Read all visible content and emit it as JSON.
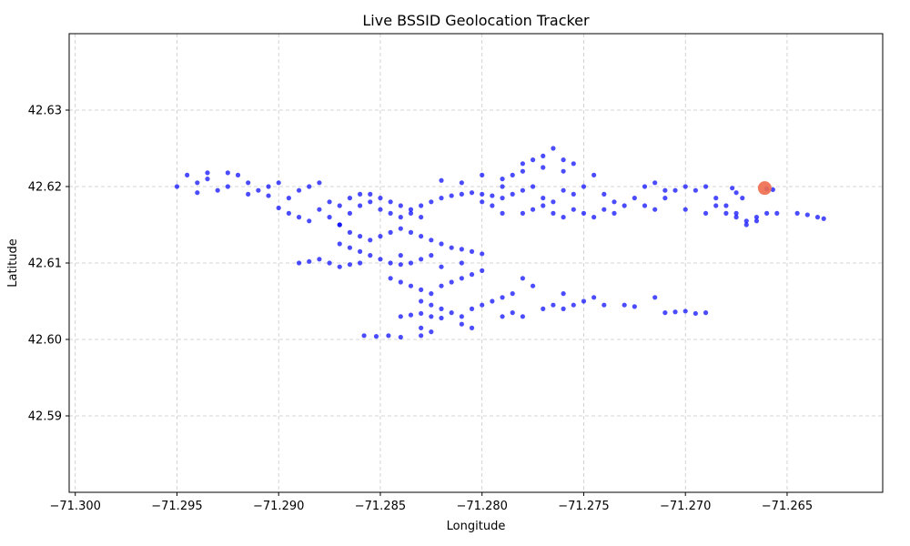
{
  "chart_data": {
    "type": "scatter",
    "title": "Live BSSID Geolocation Tracker",
    "xlabel": "Longitude",
    "ylabel": "Latitude",
    "xlim": [
      -71.3003,
      -71.2603
    ],
    "ylim": [
      42.58,
      42.64
    ],
    "x_ticks": [
      -71.3,
      -71.295,
      -71.29,
      -71.285,
      -71.28,
      -71.275,
      -71.27,
      -71.265
    ],
    "x_tick_labels": [
      "−71.300",
      "−71.295",
      "−71.290",
      "−71.285",
      "−71.280",
      "−71.275",
      "−71.270",
      "−71.265"
    ],
    "y_ticks": [
      42.59,
      42.6,
      42.61,
      42.62,
      42.63
    ],
    "y_tick_labels": [
      "42.59",
      "42.60",
      "42.61",
      "42.62",
      "42.63"
    ],
    "grid": true,
    "grid_style": "dashed",
    "series": [
      {
        "color": "#0000ff",
        "points": [
          [
            -71.295,
            42.62
          ],
          [
            -71.2945,
            42.6215
          ],
          [
            -71.294,
            42.6205
          ],
          [
            -71.2935,
            42.621
          ],
          [
            -71.293,
            42.6195
          ],
          [
            -71.2925,
            42.62
          ],
          [
            -71.292,
            42.6215
          ],
          [
            -71.2915,
            42.6205
          ],
          [
            -71.291,
            42.6195
          ],
          [
            -71.2905,
            42.62
          ],
          [
            -71.29,
            42.6205
          ],
          [
            -71.2895,
            42.6185
          ],
          [
            -71.289,
            42.6195
          ],
          [
            -71.2885,
            42.62
          ],
          [
            -71.288,
            42.6205
          ],
          [
            -71.2925,
            42.6218
          ],
          [
            -71.2935,
            42.6218
          ],
          [
            -71.294,
            42.6192
          ],
          [
            -71.2915,
            42.619
          ],
          [
            -71.2905,
            42.6188
          ],
          [
            -71.29,
            42.6172
          ],
          [
            -71.2895,
            42.6165
          ],
          [
            -71.289,
            42.616
          ],
          [
            -71.2885,
            42.6155
          ],
          [
            -71.288,
            42.617
          ],
          [
            -71.2875,
            42.616
          ],
          [
            -71.287,
            42.615
          ],
          [
            -71.2865,
            42.6165
          ],
          [
            -71.286,
            42.6175
          ],
          [
            -71.2855,
            42.618
          ],
          [
            -71.2875,
            42.618
          ],
          [
            -71.287,
            42.6175
          ],
          [
            -71.2865,
            42.6185
          ],
          [
            -71.286,
            42.619
          ],
          [
            -71.2855,
            42.619
          ],
          [
            -71.285,
            42.6185
          ],
          [
            -71.2845,
            42.618
          ],
          [
            -71.284,
            42.6175
          ],
          [
            -71.2835,
            42.617
          ],
          [
            -71.283,
            42.6175
          ],
          [
            -71.2825,
            42.618
          ],
          [
            -71.282,
            42.6185
          ],
          [
            -71.2815,
            42.6188
          ],
          [
            -71.281,
            42.619
          ],
          [
            -71.2805,
            42.6192
          ],
          [
            -71.28,
            42.619
          ],
          [
            -71.2795,
            42.6188
          ],
          [
            -71.279,
            42.6185
          ],
          [
            -71.2785,
            42.619
          ],
          [
            -71.278,
            42.6195
          ],
          [
            -71.285,
            42.617
          ],
          [
            -71.2845,
            42.6165
          ],
          [
            -71.284,
            42.616
          ],
          [
            -71.2835,
            42.6165
          ],
          [
            -71.283,
            42.616
          ],
          [
            -71.287,
            42.615
          ],
          [
            -71.2865,
            42.614
          ],
          [
            -71.286,
            42.6135
          ],
          [
            -71.2855,
            42.613
          ],
          [
            -71.285,
            42.6135
          ],
          [
            -71.2845,
            42.614
          ],
          [
            -71.284,
            42.6145
          ],
          [
            -71.2835,
            42.614
          ],
          [
            -71.283,
            42.6135
          ],
          [
            -71.2825,
            42.613
          ],
          [
            -71.282,
            42.6125
          ],
          [
            -71.2815,
            42.612
          ],
          [
            -71.281,
            42.6118
          ],
          [
            -71.2805,
            42.6115
          ],
          [
            -71.28,
            42.6112
          ],
          [
            -71.287,
            42.6125
          ],
          [
            -71.2865,
            42.612
          ],
          [
            -71.286,
            42.6115
          ],
          [
            -71.2855,
            42.611
          ],
          [
            -71.285,
            42.6105
          ],
          [
            -71.2845,
            42.61
          ],
          [
            -71.284,
            42.6098
          ],
          [
            -71.2835,
            42.61
          ],
          [
            -71.283,
            42.6105
          ],
          [
            -71.2825,
            42.611
          ],
          [
            -71.289,
            42.61
          ],
          [
            -71.2885,
            42.6102
          ],
          [
            -71.288,
            42.6105
          ],
          [
            -71.2875,
            42.61
          ],
          [
            -71.2865,
            42.6098
          ],
          [
            -71.2845,
            42.608
          ],
          [
            -71.284,
            42.6075
          ],
          [
            -71.2835,
            42.607
          ],
          [
            -71.283,
            42.6065
          ],
          [
            -71.2825,
            42.606
          ],
          [
            -71.283,
            42.605
          ],
          [
            -71.2825,
            42.6045
          ],
          [
            -71.282,
            42.604
          ],
          [
            -71.2815,
            42.6035
          ],
          [
            -71.281,
            42.603
          ],
          [
            -71.2805,
            42.604
          ],
          [
            -71.28,
            42.6045
          ],
          [
            -71.2795,
            42.605
          ],
          [
            -71.279,
            42.6055
          ],
          [
            -71.2785,
            42.606
          ],
          [
            -71.282,
            42.607
          ],
          [
            -71.2815,
            42.6075
          ],
          [
            -71.281,
            42.608
          ],
          [
            -71.2805,
            42.6085
          ],
          [
            -71.28,
            42.609
          ],
          [
            -71.284,
            42.603
          ],
          [
            -71.2835,
            42.6032
          ],
          [
            -71.283,
            42.6034
          ],
          [
            -71.2825,
            42.603
          ],
          [
            -71.282,
            42.6028
          ],
          [
            -71.283,
            42.6015
          ],
          [
            -71.2825,
            42.601
          ],
          [
            -71.283,
            42.6005
          ],
          [
            -71.281,
            42.602
          ],
          [
            -71.2805,
            42.6015
          ],
          [
            -71.2858,
            42.6005
          ],
          [
            -71.2852,
            42.6004
          ],
          [
            -71.2846,
            42.6005
          ],
          [
            -71.284,
            42.6003
          ],
          [
            -71.279,
            42.603
          ],
          [
            -71.2785,
            42.6035
          ],
          [
            -71.278,
            42.603
          ],
          [
            -71.277,
            42.604
          ],
          [
            -71.2765,
            42.6045
          ],
          [
            -71.276,
            42.604
          ],
          [
            -71.2755,
            42.6045
          ],
          [
            -71.275,
            42.605
          ],
          [
            -71.2745,
            42.6055
          ],
          [
            -71.274,
            42.6045
          ],
          [
            -71.273,
            42.6045
          ],
          [
            -71.2725,
            42.6043
          ],
          [
            -71.2715,
            42.6055
          ],
          [
            -71.271,
            42.6035
          ],
          [
            -71.2705,
            42.6036
          ],
          [
            -71.27,
            42.6037
          ],
          [
            -71.2695,
            42.6034
          ],
          [
            -71.269,
            42.6035
          ],
          [
            -71.279,
            42.62
          ],
          [
            -71.2785,
            42.6215
          ],
          [
            -71.278,
            42.623
          ],
          [
            -71.2775,
            42.6235
          ],
          [
            -71.277,
            42.624
          ],
          [
            -71.2765,
            42.625
          ],
          [
            -71.276,
            42.6235
          ],
          [
            -71.2755,
            42.623
          ],
          [
            -71.276,
            42.622
          ],
          [
            -71.277,
            42.6225
          ],
          [
            -71.278,
            42.622
          ],
          [
            -71.279,
            42.621
          ],
          [
            -71.28,
            42.6215
          ],
          [
            -71.281,
            42.6205
          ],
          [
            -71.282,
            42.6208
          ],
          [
            -71.2775,
            42.62
          ],
          [
            -71.277,
            42.6185
          ],
          [
            -71.2765,
            42.618
          ],
          [
            -71.276,
            42.6195
          ],
          [
            -71.2755,
            42.619
          ],
          [
            -71.275,
            42.62
          ],
          [
            -71.2745,
            42.6215
          ],
          [
            -71.274,
            42.619
          ],
          [
            -71.2735,
            42.618
          ],
          [
            -71.273,
            42.6175
          ],
          [
            -71.278,
            42.6165
          ],
          [
            -71.2775,
            42.617
          ],
          [
            -71.277,
            42.6175
          ],
          [
            -71.2765,
            42.6165
          ],
          [
            -71.276,
            42.616
          ],
          [
            -71.2755,
            42.617
          ],
          [
            -71.275,
            42.6165
          ],
          [
            -71.2745,
            42.616
          ],
          [
            -71.274,
            42.617
          ],
          [
            -71.2735,
            42.6165
          ],
          [
            -71.279,
            42.6165
          ],
          [
            -71.2795,
            42.6175
          ],
          [
            -71.28,
            42.618
          ],
          [
            -71.2725,
            42.6185
          ],
          [
            -71.272,
            42.6175
          ],
          [
            -71.2715,
            42.617
          ],
          [
            -71.271,
            42.6185
          ],
          [
            -71.2705,
            42.6195
          ],
          [
            -71.27,
            42.62
          ],
          [
            -71.2695,
            42.6195
          ],
          [
            -71.269,
            42.62
          ],
          [
            -71.2685,
            42.6185
          ],
          [
            -71.268,
            42.6175
          ],
          [
            -71.2675,
            42.6165
          ],
          [
            -71.267,
            42.6155
          ],
          [
            -71.2665,
            42.616
          ],
          [
            -71.266,
            42.6165
          ],
          [
            -71.2655,
            42.6165
          ],
          [
            -71.272,
            42.62
          ],
          [
            -71.2715,
            42.6205
          ],
          [
            -71.271,
            42.6195
          ],
          [
            -71.27,
            42.617
          ],
          [
            -71.269,
            42.6165
          ],
          [
            -71.2685,
            42.6175
          ],
          [
            -71.268,
            42.6165
          ],
          [
            -71.2675,
            42.616
          ],
          [
            -71.267,
            42.615
          ],
          [
            -71.2665,
            42.6155
          ],
          [
            -71.2677,
            42.6198
          ],
          [
            -71.2675,
            42.6192
          ],
          [
            -71.2672,
            42.6185
          ],
          [
            -71.266,
            42.6197
          ],
          [
            -71.2657,
            42.6196
          ],
          [
            -71.2645,
            42.6165
          ],
          [
            -71.264,
            42.6163
          ],
          [
            -71.2635,
            42.616
          ],
          [
            -71.2632,
            42.6158
          ],
          [
            -71.286,
            42.61
          ],
          [
            -71.287,
            42.6095
          ],
          [
            -71.284,
            42.611
          ],
          [
            -71.282,
            42.6095
          ],
          [
            -71.281,
            42.61
          ],
          [
            -71.278,
            42.608
          ],
          [
            -71.2775,
            42.607
          ],
          [
            -71.276,
            42.606
          ]
        ]
      }
    ],
    "highlight": {
      "color": "#ee6c4d",
      "point": [
        -71.2661,
        42.6198
      ]
    }
  }
}
